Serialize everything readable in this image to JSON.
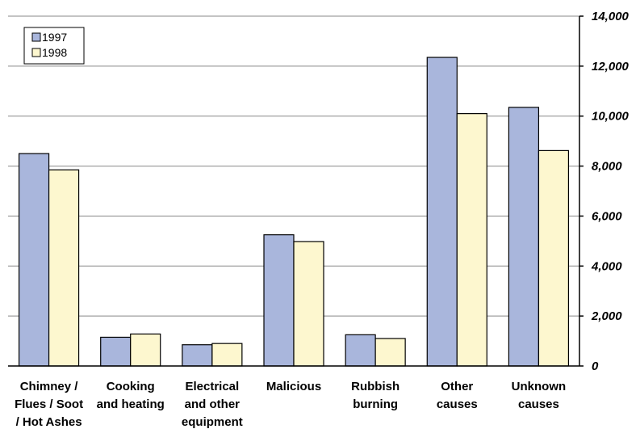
{
  "chart_data": {
    "type": "bar",
    "categories": [
      "Chimney / Flues / Soot / Hot Ashes",
      "Cooking and heating",
      "Electrical and other equipment",
      "Malicious",
      "Rubbish burning",
      "Other causes",
      "Unknown causes"
    ],
    "category_lines": [
      [
        "Chimney /",
        "Flues / Soot",
        "/ Hot Ashes"
      ],
      [
        "Cooking",
        "and heating"
      ],
      [
        "Electrical",
        "and other",
        "equipment"
      ],
      [
        "Malicious"
      ],
      [
        "Rubbish",
        "burning"
      ],
      [
        "Other",
        "causes"
      ],
      [
        "Unknown",
        "causes"
      ]
    ],
    "series": [
      {
        "name": "1997",
        "values": [
          8500,
          1150,
          850,
          5250,
          1250,
          12350,
          10350
        ],
        "color": "#a9b6dc"
      },
      {
        "name": "1998",
        "values": [
          7850,
          1280,
          900,
          4980,
          1100,
          10100,
          8620
        ],
        "color": "#fdf7cf"
      }
    ],
    "title": "",
    "xlabel": "",
    "ylabel": "",
    "ylim": [
      0,
      14000
    ],
    "y_ticks": [
      0,
      2000,
      4000,
      6000,
      8000,
      10000,
      12000,
      14000
    ],
    "y_tick_labels": [
      "0",
      "2,000",
      "4,000",
      "6,000",
      "8,000",
      "10,000",
      "12,000",
      "14,000"
    ],
    "y_axis_side": "right",
    "grid": true,
    "legend_position": "top-left",
    "colors": {
      "gridline": "#888888",
      "bar_outline": "#000000"
    }
  }
}
